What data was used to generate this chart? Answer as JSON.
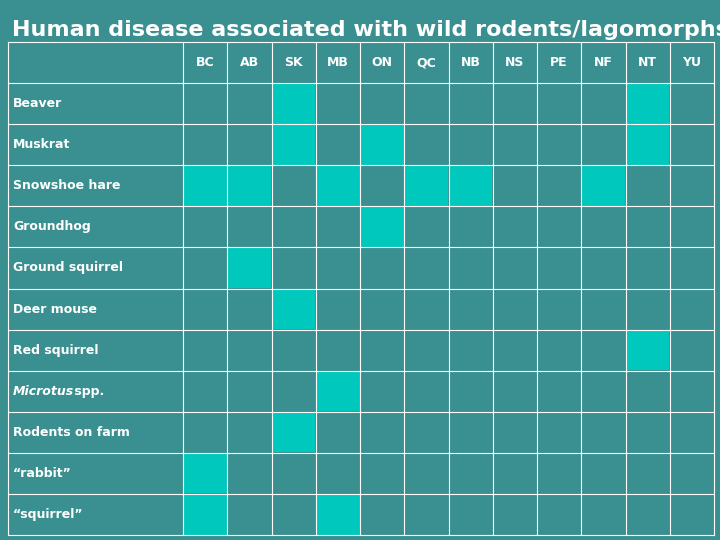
{
  "title": "Human disease associated with wild rodents/lagomorphs",
  "columns": [
    "BC",
    "AB",
    "SK",
    "MB",
    "ON",
    "QC",
    "NB",
    "NS",
    "PE",
    "NF",
    "NT",
    "YU"
  ],
  "rows": [
    "Beaver",
    "Muskrat",
    "Snowshoe hare",
    "Groundhog",
    "Ground squirrel",
    "Deer mouse",
    "Red squirrel",
    "Microtus spp.",
    "Rodents on farm",
    "“rabbit”",
    "“squirrel”"
  ],
  "filled": {
    "Beaver": [
      2,
      10
    ],
    "Muskrat": [
      2,
      4,
      10
    ],
    "Snowshoe hare": [
      0,
      1,
      3,
      5,
      6,
      9
    ],
    "Groundhog": [
      4
    ],
    "Ground squirrel": [
      1
    ],
    "Deer mouse": [
      2
    ],
    "Red squirrel": [
      10
    ],
    "Microtus spp.": [
      3
    ],
    "Rodents on farm": [
      2
    ],
    "“rabbit”": [
      0
    ],
    "“squirrel”": [
      0,
      3
    ]
  },
  "bg_color": "#3a9090",
  "fill_color": "#00c8bc",
  "grid_color": "#ffffff",
  "text_color": "#ffffff",
  "title_color": "#ffffff",
  "title_fontsize": 16,
  "header_fontsize": 9,
  "row_label_fontsize": 9
}
